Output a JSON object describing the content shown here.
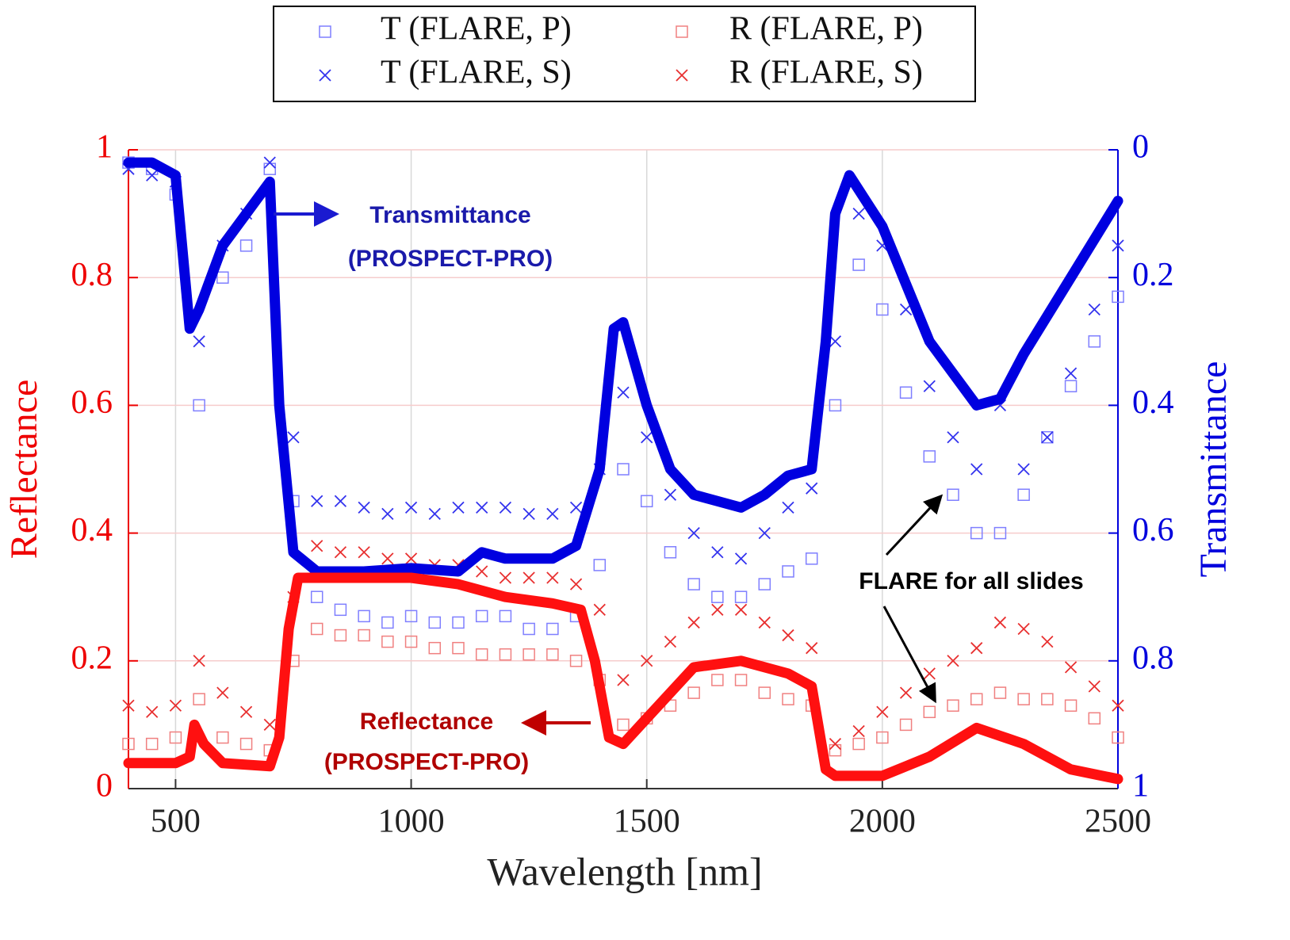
{
  "chart_data": {
    "type": "scatter",
    "xlabel": "Wavelength [nm]",
    "ylabel": "Reflectance",
    "y2label": "Transmittance",
    "xlim": [
      400,
      2500
    ],
    "xticks": [
      500,
      1000,
      1500,
      2000,
      2500
    ],
    "ylim": [
      0,
      1
    ],
    "yticks": [
      0,
      0.2,
      0.4,
      0.6,
      0.8,
      1
    ],
    "y2lim": [
      1,
      0
    ],
    "y2ticks": [
      0,
      0.2,
      0.4,
      0.6,
      0.8,
      1
    ],
    "grid": true,
    "annotations": [
      "Transmittance",
      "(PROSPECT-PRO)",
      "Reflectance",
      "(PROSPECT-PRO)",
      "FLARE for all slides"
    ],
    "series": [
      {
        "name": "T (FLARE, P)",
        "marker": "square",
        "color": "#7f7fff",
        "axis": "y2",
        "x": [
          400,
          450,
          500,
          550,
          600,
          650,
          700,
          750,
          800,
          850,
          900,
          950,
          1000,
          1050,
          1100,
          1150,
          1200,
          1250,
          1300,
          1350,
          1400,
          1450,
          1500,
          1550,
          1600,
          1650,
          1700,
          1750,
          1800,
          1850,
          1900,
          1950,
          2000,
          2050,
          2100,
          2150,
          2200,
          2250,
          2300,
          2350,
          2400,
          2450,
          2500
        ],
        "values": [
          0.02,
          0.03,
          0.07,
          0.4,
          0.2,
          0.15,
          0.03,
          0.55,
          0.7,
          0.72,
          0.73,
          0.74,
          0.73,
          0.74,
          0.74,
          0.73,
          0.73,
          0.75,
          0.75,
          0.73,
          0.65,
          0.5,
          0.55,
          0.63,
          0.68,
          0.7,
          0.7,
          0.68,
          0.66,
          0.64,
          0.4,
          0.18,
          0.25,
          0.38,
          0.48,
          0.54,
          0.6,
          0.6,
          0.54,
          0.45,
          0.37,
          0.3,
          0.23
        ]
      },
      {
        "name": "T (FLARE, S)",
        "marker": "cross",
        "color": "#3333ee",
        "axis": "y2",
        "x": [
          400,
          450,
          500,
          550,
          600,
          650,
          700,
          750,
          800,
          850,
          900,
          950,
          1000,
          1050,
          1100,
          1150,
          1200,
          1250,
          1300,
          1350,
          1400,
          1450,
          1500,
          1550,
          1600,
          1650,
          1700,
          1750,
          1800,
          1850,
          1900,
          1950,
          2000,
          2050,
          2100,
          2150,
          2200,
          2250,
          2300,
          2350,
          2400,
          2450,
          2500
        ],
        "values": [
          0.03,
          0.04,
          0.05,
          0.3,
          0.15,
          0.1,
          0.02,
          0.45,
          0.55,
          0.55,
          0.56,
          0.57,
          0.56,
          0.57,
          0.56,
          0.56,
          0.56,
          0.57,
          0.57,
          0.56,
          0.5,
          0.38,
          0.45,
          0.54,
          0.6,
          0.63,
          0.64,
          0.6,
          0.56,
          0.53,
          0.3,
          0.1,
          0.15,
          0.25,
          0.37,
          0.45,
          0.5,
          0.4,
          0.5,
          0.45,
          0.35,
          0.25,
          0.15
        ]
      },
      {
        "name": "R (FLARE, P)",
        "marker": "square",
        "color": "#f08080",
        "x": [
          400,
          450,
          500,
          550,
          600,
          650,
          700,
          750,
          800,
          850,
          900,
          950,
          1000,
          1050,
          1100,
          1150,
          1200,
          1250,
          1300,
          1350,
          1400,
          1450,
          1500,
          1550,
          1600,
          1650,
          1700,
          1750,
          1800,
          1850,
          1900,
          1950,
          2000,
          2050,
          2100,
          2150,
          2200,
          2250,
          2300,
          2350,
          2400,
          2450,
          2500
        ],
        "values": [
          0.07,
          0.07,
          0.08,
          0.14,
          0.08,
          0.07,
          0.06,
          0.2,
          0.25,
          0.24,
          0.24,
          0.23,
          0.23,
          0.22,
          0.22,
          0.21,
          0.21,
          0.21,
          0.21,
          0.2,
          0.17,
          0.1,
          0.11,
          0.13,
          0.15,
          0.17,
          0.17,
          0.15,
          0.14,
          0.13,
          0.06,
          0.07,
          0.08,
          0.1,
          0.12,
          0.13,
          0.14,
          0.15,
          0.14,
          0.14,
          0.13,
          0.11,
          0.08
        ]
      },
      {
        "name": "R (FLARE, S)",
        "marker": "cross",
        "color": "#e83030",
        "x": [
          400,
          450,
          500,
          550,
          600,
          650,
          700,
          750,
          800,
          850,
          900,
          950,
          1000,
          1050,
          1100,
          1150,
          1200,
          1250,
          1300,
          1350,
          1400,
          1450,
          1500,
          1550,
          1600,
          1650,
          1700,
          1750,
          1800,
          1850,
          1900,
          1950,
          2000,
          2050,
          2100,
          2150,
          2200,
          2250,
          2300,
          2350,
          2400,
          2450,
          2500
        ],
        "values": [
          0.13,
          0.12,
          0.13,
          0.2,
          0.15,
          0.12,
          0.1,
          0.3,
          0.38,
          0.37,
          0.37,
          0.36,
          0.36,
          0.35,
          0.35,
          0.34,
          0.33,
          0.33,
          0.33,
          0.32,
          0.28,
          0.17,
          0.2,
          0.23,
          0.26,
          0.28,
          0.28,
          0.26,
          0.24,
          0.22,
          0.07,
          0.09,
          0.12,
          0.15,
          0.18,
          0.2,
          0.22,
          0.26,
          0.25,
          0.23,
          0.19,
          0.16,
          0.13
        ]
      },
      {
        "marker": "line",
        "color": "#0000e0",
        "axis": "y2",
        "x": [
          400,
          450,
          500,
          530,
          550,
          600,
          650,
          700,
          720,
          750,
          800,
          900,
          1000,
          1100,
          1150,
          1200,
          1300,
          1350,
          1400,
          1430,
          1450,
          1500,
          1550,
          1600,
          1700,
          1750,
          1800,
          1850,
          1880,
          1900,
          1930,
          2000,
          2100,
          2200,
          2250,
          2300,
          2400,
          2500
        ],
        "values": [
          0.02,
          0.02,
          0.04,
          0.28,
          0.25,
          0.15,
          0.1,
          0.05,
          0.4,
          0.63,
          0.66,
          0.66,
          0.655,
          0.66,
          0.63,
          0.64,
          0.64,
          0.62,
          0.5,
          0.28,
          0.27,
          0.4,
          0.5,
          0.54,
          0.56,
          0.54,
          0.51,
          0.5,
          0.3,
          0.1,
          0.04,
          0.12,
          0.3,
          0.4,
          0.39,
          0.32,
          0.2,
          0.08
        ]
      },
      {
        "marker": "line",
        "color": "#ff1010",
        "x": [
          400,
          500,
          530,
          540,
          560,
          600,
          700,
          720,
          740,
          760,
          900,
          1000,
          1100,
          1200,
          1300,
          1360,
          1390,
          1420,
          1450,
          1500,
          1600,
          1700,
          1800,
          1850,
          1880,
          1900,
          2000,
          2100,
          2200,
          2300,
          2400,
          2500
        ],
        "values": [
          0.04,
          0.04,
          0.05,
          0.1,
          0.07,
          0.04,
          0.035,
          0.08,
          0.25,
          0.33,
          0.33,
          0.33,
          0.32,
          0.3,
          0.29,
          0.28,
          0.2,
          0.08,
          0.07,
          0.11,
          0.19,
          0.2,
          0.18,
          0.16,
          0.03,
          0.02,
          0.02,
          0.05,
          0.095,
          0.07,
          0.03,
          0.015
        ]
      }
    ]
  }
}
